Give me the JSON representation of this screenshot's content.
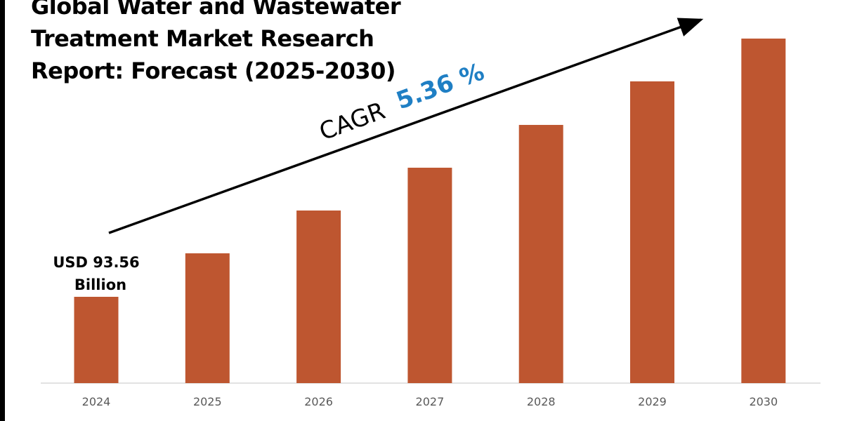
{
  "chart_data": {
    "type": "bar",
    "title": [
      "Global Water and Wastewater",
      "Treatment Market Research",
      "Report: Forecast (2025-2030)"
    ],
    "categories": [
      "2024",
      "2025",
      "2026",
      "2027",
      "2028",
      "2029",
      "2030"
    ],
    "values": [
      93.56,
      140.7,
      187.1,
      233.5,
      279.9,
      327.1,
      373.5
    ],
    "values_note_label": [
      "USD 93.56",
      "Billion"
    ],
    "annotation": {
      "label": "CAGR",
      "value": "5.36 %"
    },
    "xlabel": "",
    "ylabel": "",
    "ylim": [
      0,
      400
    ],
    "grid": false,
    "colors": {
      "bar": "#BE5630",
      "cagr_value": "#1F7FC4",
      "text": "#000000",
      "tick": "#595959"
    }
  }
}
